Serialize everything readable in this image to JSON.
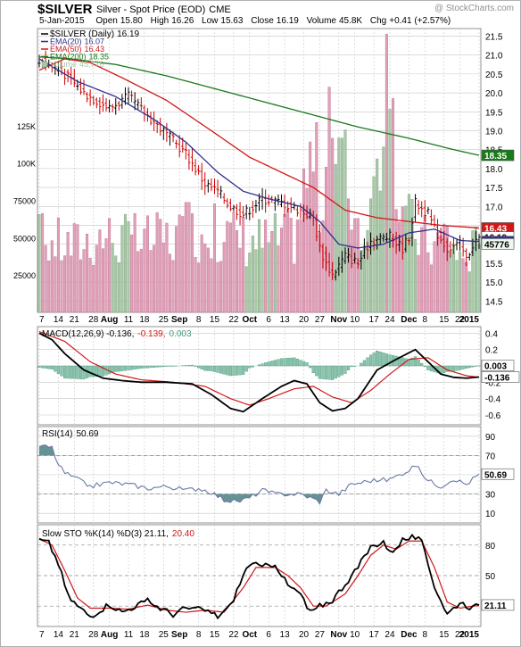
{
  "header": {
    "symbol": "$SILVER",
    "description": "Silver - Spot Price (EOD)",
    "exchange": "CME",
    "watermark": "@ StockCharts.com",
    "date": "5-Jan-2015",
    "open_label": "Open",
    "open": "15.80",
    "high_label": "High",
    "high": "16.26",
    "low_label": "Low",
    "low": "15.63",
    "close_label": "Close",
    "close": "16.19",
    "volume_label": "Volume",
    "volume": "45.8K",
    "chg_label": "Chg",
    "chg": "+0.41 (+2.57%)"
  },
  "colors": {
    "price": "#000000",
    "up": "#000000",
    "down": "#cc0000",
    "ema20": "#303090",
    "ema50": "#d01818",
    "ema200": "#1a7a1a",
    "volume_up": "#a8c8a8",
    "volume_down": "#e0a0b8",
    "rsi": "#6878a8",
    "rsi_fill": "#4a8080",
    "grid": "#c8c8c8"
  },
  "chart_data": [
    {
      "type": "line",
      "panel": "price",
      "title": "$SILVER (Daily) 16.19",
      "legend_position": "top-left",
      "legend": [
        {
          "name": "$SILVER (Daily)",
          "value": "16.19",
          "color": "#000000",
          "marker": "line"
        },
        {
          "name": "EMA(20)",
          "value": "16.07",
          "color": "#303090",
          "marker": "line"
        },
        {
          "name": "EMA(50)",
          "value": "16.43",
          "color": "#d01818",
          "marker": "line"
        },
        {
          "name": "EMA(200)",
          "value": "18.35",
          "color": "#1a7a1a",
          "marker": "line"
        },
        {
          "name": "Volume",
          "value": "45,776",
          "color": "#a8c8a8",
          "marker": "box"
        }
      ],
      "ylim": [
        14.2,
        21.7
      ],
      "y_ticks": [
        14.5,
        15.0,
        15.5,
        16.0,
        16.5,
        17.0,
        17.5,
        18.0,
        18.5,
        19.0,
        19.5,
        20.0,
        20.5,
        21.0,
        21.5
      ],
      "y_tick_labels": [
        "14.5",
        "15.0",
        "15.5",
        "16.0",
        "16.5",
        "17.0",
        "17.5",
        "18.0",
        "18.5",
        "19.0",
        "19.5",
        "20.0",
        "20.5",
        "21.0",
        "21.5"
      ],
      "volume_tick_labels": [
        "125K",
        "100K",
        "75000",
        "50000",
        "25000"
      ],
      "volume_ticks": [
        125000,
        100000,
        75000,
        50000,
        25000
      ],
      "volume_max": 190000,
      "x_tick_labels": [
        "7",
        "14",
        "21",
        "28",
        "Aug",
        "11",
        "18",
        "25",
        "Sep",
        "8",
        "15",
        "22",
        "Oct",
        "6",
        "13",
        "20",
        "27",
        "Nov",
        "10",
        "17",
        "24",
        "Dec",
        "8",
        "15",
        "22",
        "2015"
      ],
      "x_tick_bold": [
        "Aug",
        "Sep",
        "Oct",
        "Nov",
        "Dec",
        "2015"
      ],
      "last_value_tags": [
        {
          "label": "18.35",
          "value": 18.35,
          "color": "#1a7a1a"
        },
        {
          "label": "16.43",
          "value": 16.43,
          "color": "#d01818"
        },
        {
          "label": "16.19",
          "value": 16.19,
          "color": "#000000"
        },
        {
          "label": "16.07",
          "value": 16.07,
          "color": "#303090"
        },
        {
          "label": "45776",
          "value": 45776,
          "color": "#a8c8a8",
          "axis": "volume"
        }
      ],
      "price_anchors": [
        [
          0,
          20.9
        ],
        [
          8,
          20.5
        ],
        [
          14,
          20.0
        ],
        [
          22,
          19.6
        ],
        [
          28,
          19.9
        ],
        [
          34,
          19.4
        ],
        [
          40,
          18.9
        ],
        [
          46,
          18.4
        ],
        [
          52,
          17.6
        ],
        [
          56,
          17.4
        ],
        [
          60,
          17.0
        ],
        [
          64,
          16.8
        ],
        [
          70,
          17.2
        ],
        [
          76,
          17.1
        ],
        [
          82,
          16.9
        ],
        [
          86,
          16.7
        ],
        [
          88,
          15.9
        ],
        [
          90,
          15.5
        ],
        [
          92,
          15.2
        ],
        [
          96,
          15.7
        ],
        [
          100,
          15.5
        ],
        [
          104,
          16.1
        ],
        [
          110,
          16.2
        ],
        [
          114,
          15.9
        ],
        [
          116,
          16.2
        ],
        [
          118,
          17.1
        ],
        [
          122,
          16.8
        ],
        [
          124,
          16.4
        ],
        [
          128,
          15.9
        ],
        [
          132,
          16.0
        ],
        [
          134,
          15.6
        ],
        [
          136,
          16.0
        ],
        [
          138,
          16.19
        ]
      ],
      "ema20_anchors": [
        [
          0,
          20.9
        ],
        [
          12,
          20.3
        ],
        [
          24,
          19.9
        ],
        [
          36,
          19.3
        ],
        [
          46,
          18.7
        ],
        [
          56,
          17.9
        ],
        [
          64,
          17.4
        ],
        [
          72,
          17.2
        ],
        [
          82,
          17.0
        ],
        [
          88,
          16.6
        ],
        [
          94,
          16.0
        ],
        [
          100,
          15.9
        ],
        [
          108,
          16.0
        ],
        [
          116,
          16.3
        ],
        [
          124,
          16.4
        ],
        [
          132,
          16.1
        ],
        [
          138,
          16.07
        ]
      ],
      "ema50_anchors": [
        [
          0,
          20.6
        ],
        [
          8,
          20.9
        ],
        [
          16,
          20.8
        ],
        [
          26,
          20.4
        ],
        [
          40,
          19.8
        ],
        [
          54,
          19.0
        ],
        [
          66,
          18.3
        ],
        [
          76,
          17.9
        ],
        [
          86,
          17.5
        ],
        [
          96,
          16.9
        ],
        [
          106,
          16.7
        ],
        [
          116,
          16.6
        ],
        [
          126,
          16.5
        ],
        [
          138,
          16.43
        ]
      ],
      "ema200_anchors": [
        [
          0,
          20.95
        ],
        [
          10,
          20.9
        ],
        [
          24,
          20.75
        ],
        [
          40,
          20.45
        ],
        [
          60,
          20.0
        ],
        [
          80,
          19.55
        ],
        [
          100,
          19.1
        ],
        [
          116,
          18.8
        ],
        [
          130,
          18.5
        ],
        [
          138,
          18.35
        ]
      ],
      "volume_anchors": [
        [
          0,
          50000
        ],
        [
          10,
          45000
        ],
        [
          20,
          52000
        ],
        [
          30,
          48000
        ],
        [
          40,
          50000
        ],
        [
          50,
          55000
        ],
        [
          60,
          52000
        ],
        [
          70,
          48000
        ],
        [
          80,
          52000
        ],
        [
          86,
          110000
        ],
        [
          88,
          78000
        ],
        [
          92,
          120000
        ],
        [
          96,
          95000
        ],
        [
          100,
          62000
        ],
        [
          104,
          55000
        ],
        [
          108,
          150000
        ],
        [
          112,
          88000
        ],
        [
          116,
          60000
        ],
        [
          120,
          50000
        ],
        [
          124,
          45000
        ],
        [
          128,
          55000
        ],
        [
          132,
          35000
        ],
        [
          138,
          45776
        ]
      ]
    },
    {
      "type": "line",
      "panel": "macd",
      "title": "MACD(12,26,9)",
      "legend": [
        {
          "name": "MACD(12,26,9)",
          "value": "-0.136",
          "color": "#000000"
        },
        {
          "name": "",
          "value": "-0.139",
          "color": "#d01818"
        },
        {
          "name": "",
          "value": "0.003",
          "color": "#4a9a80"
        }
      ],
      "ylim": [
        -0.72,
        0.48
      ],
      "y_ticks": [
        0.4,
        0.2,
        0.0,
        -0.2,
        -0.4,
        -0.6
      ],
      "y_tick_labels": [
        "0.4",
        "0.2",
        "0.0",
        "-0.2",
        "-0.4",
        "-0.6"
      ],
      "last_value_tags": [
        {
          "label": "0.003",
          "value": 0.003
        },
        {
          "label": "-0.136",
          "value": -0.136
        }
      ],
      "macd_anchors": [
        [
          0,
          0.4
        ],
        [
          4,
          0.32
        ],
        [
          8,
          0.15
        ],
        [
          14,
          -0.05
        ],
        [
          20,
          -0.15
        ],
        [
          26,
          -0.18
        ],
        [
          32,
          -0.2
        ],
        [
          40,
          -0.2
        ],
        [
          48,
          -0.22
        ],
        [
          54,
          -0.35
        ],
        [
          60,
          -0.52
        ],
        [
          64,
          -0.56
        ],
        [
          70,
          -0.4
        ],
        [
          76,
          -0.25
        ],
        [
          80,
          -0.18
        ],
        [
          84,
          -0.22
        ],
        [
          88,
          -0.45
        ],
        [
          92,
          -0.55
        ],
        [
          96,
          -0.52
        ],
        [
          100,
          -0.4
        ],
        [
          106,
          -0.05
        ],
        [
          112,
          0.08
        ],
        [
          118,
          0.2
        ],
        [
          122,
          0.05
        ],
        [
          126,
          -0.1
        ],
        [
          130,
          -0.14
        ],
        [
          134,
          -0.15
        ],
        [
          138,
          -0.136
        ]
      ],
      "signal_anchors": [
        [
          0,
          0.42
        ],
        [
          8,
          0.3
        ],
        [
          16,
          0.05
        ],
        [
          24,
          -0.1
        ],
        [
          32,
          -0.17
        ],
        [
          42,
          -0.2
        ],
        [
          52,
          -0.25
        ],
        [
          60,
          -0.4
        ],
        [
          66,
          -0.48
        ],
        [
          72,
          -0.4
        ],
        [
          80,
          -0.28
        ],
        [
          86,
          -0.25
        ],
        [
          92,
          -0.38
        ],
        [
          98,
          -0.45
        ],
        [
          104,
          -0.3
        ],
        [
          110,
          -0.1
        ],
        [
          116,
          0.08
        ],
        [
          122,
          0.1
        ],
        [
          128,
          -0.05
        ],
        [
          134,
          -0.12
        ],
        [
          138,
          -0.139
        ]
      ]
    },
    {
      "type": "line",
      "panel": "rsi",
      "title": "RSI(14)",
      "legend": [
        {
          "name": "RSI(14)",
          "value": "50.69",
          "color": "#6878a8"
        }
      ],
      "ylim": [
        0,
        100
      ],
      "y_ticks": [
        90,
        70,
        50,
        30,
        10
      ],
      "y_tick_labels": [
        "90",
        "70",
        "50",
        "30",
        "10"
      ],
      "levels": [
        70,
        30
      ],
      "last_value_tags": [
        {
          "label": "50.69",
          "value": 50.69
        }
      ],
      "rsi_anchors": [
        [
          0,
          80
        ],
        [
          4,
          78
        ],
        [
          6,
          60
        ],
        [
          8,
          52
        ],
        [
          12,
          45
        ],
        [
          16,
          38
        ],
        [
          22,
          42
        ],
        [
          28,
          40
        ],
        [
          34,
          36
        ],
        [
          40,
          38
        ],
        [
          46,
          34
        ],
        [
          50,
          36
        ],
        [
          54,
          32
        ],
        [
          58,
          24
        ],
        [
          62,
          22
        ],
        [
          66,
          26
        ],
        [
          70,
          34
        ],
        [
          74,
          30
        ],
        [
          78,
          30
        ],
        [
          82,
          30
        ],
        [
          86,
          25
        ],
        [
          88,
          22
        ],
        [
          90,
          34
        ],
        [
          94,
          30
        ],
        [
          98,
          40
        ],
        [
          104,
          44
        ],
        [
          110,
          45
        ],
        [
          116,
          55
        ],
        [
          118,
          60
        ],
        [
          122,
          44
        ],
        [
          126,
          38
        ],
        [
          130,
          46
        ],
        [
          134,
          40
        ],
        [
          138,
          50.69
        ]
      ]
    },
    {
      "type": "line",
      "panel": "stochastic",
      "title": "Slow STO %K(14) %D(3)",
      "legend": [
        {
          "name": "Slow STO %K(14) %D(3)",
          "value": "21.11",
          "color": "#000000"
        },
        {
          "name": "",
          "value": "20.40",
          "color": "#d01818"
        }
      ],
      "ylim": [
        0,
        100
      ],
      "y_ticks": [
        80,
        50,
        20
      ],
      "y_tick_labels": [
        "80",
        "50",
        "20"
      ],
      "levels": [
        80,
        50,
        20
      ],
      "last_value_tags": [
        {
          "label": "21.11",
          "value": 21.11
        }
      ],
      "k_anchors": [
        [
          0,
          85
        ],
        [
          3,
          82
        ],
        [
          6,
          62
        ],
        [
          9,
          30
        ],
        [
          12,
          20
        ],
        [
          16,
          10
        ],
        [
          22,
          22
        ],
        [
          26,
          14
        ],
        [
          30,
          20
        ],
        [
          34,
          25
        ],
        [
          38,
          18
        ],
        [
          42,
          12
        ],
        [
          46,
          18
        ],
        [
          52,
          16
        ],
        [
          56,
          10
        ],
        [
          60,
          20
        ],
        [
          64,
          50
        ],
        [
          66,
          62
        ],
        [
          70,
          58
        ],
        [
          74,
          62
        ],
        [
          78,
          40
        ],
        [
          82,
          32
        ],
        [
          84,
          18
        ],
        [
          86,
          14
        ],
        [
          88,
          20
        ],
        [
          92,
          26
        ],
        [
          96,
          42
        ],
        [
          100,
          58
        ],
        [
          104,
          78
        ],
        [
          108,
          84
        ],
        [
          110,
          72
        ],
        [
          114,
          85
        ],
        [
          118,
          88
        ],
        [
          120,
          82
        ],
        [
          124,
          40
        ],
        [
          128,
          12
        ],
        [
          132,
          24
        ],
        [
          136,
          18
        ],
        [
          138,
          21.11
        ]
      ],
      "d_anchors": [
        [
          0,
          86
        ],
        [
          4,
          80
        ],
        [
          8,
          55
        ],
        [
          12,
          28
        ],
        [
          16,
          18
        ],
        [
          22,
          18
        ],
        [
          28,
          17
        ],
        [
          34,
          21
        ],
        [
          40,
          16
        ],
        [
          46,
          14
        ],
        [
          52,
          16
        ],
        [
          58,
          14
        ],
        [
          64,
          38
        ],
        [
          68,
          58
        ],
        [
          74,
          58
        ],
        [
          78,
          50
        ],
        [
          82,
          38
        ],
        [
          86,
          20
        ],
        [
          90,
          20
        ],
        [
          96,
          32
        ],
        [
          100,
          50
        ],
        [
          104,
          70
        ],
        [
          108,
          80
        ],
        [
          112,
          76
        ],
        [
          116,
          84
        ],
        [
          120,
          84
        ],
        [
          124,
          58
        ],
        [
          128,
          24
        ],
        [
          132,
          18
        ],
        [
          136,
          20
        ],
        [
          138,
          20.4
        ]
      ]
    }
  ]
}
